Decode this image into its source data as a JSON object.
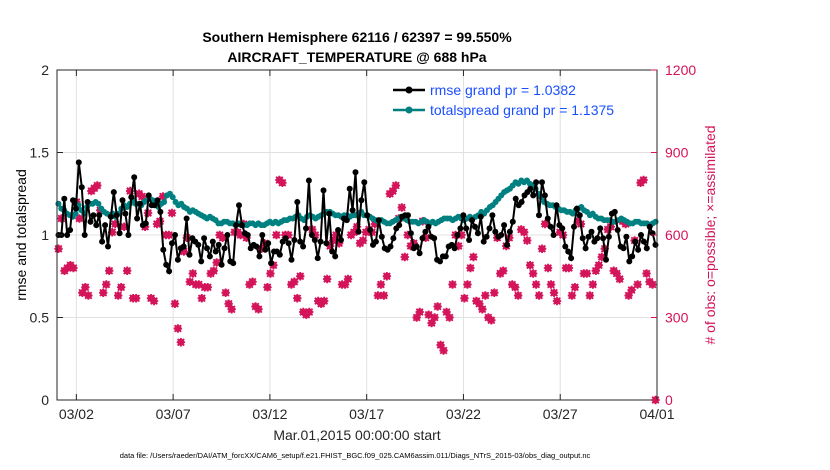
{
  "chart_data": {
    "type": "line",
    "title_line1": "Southern Hemisphere 62116 / 62397 = 99.550%",
    "title_line2": "AIRCRAFT_TEMPERATURE @ 688 hPa",
    "xlabel": "Mar.01,2015 00:00:00 start",
    "ylabel": "rmse and totalspread",
    "ylabel_right": "# of obs: o=possible; ×=assimilated",
    "footer": "data file: /Users/raeder/DAI/ATM_forcXX/CAM6_setup/f.e21.FHIST_BGC.f09_025.CAM6assim.011/Diags_NTrS_2015-03/obs_diag_output.nc",
    "xlim": [
      0,
      31
    ],
    "ylim": [
      0,
      2
    ],
    "ylim_right": [
      0,
      1200
    ],
    "xticks": [
      1,
      6,
      11,
      16,
      21,
      26,
      31
    ],
    "xtick_labels": [
      "03/02",
      "03/07",
      "03/12",
      "03/17",
      "03/22",
      "03/27",
      "04/01"
    ],
    "yticks": [
      0,
      0.5,
      1,
      1.5,
      2
    ],
    "ytick_labels": [
      "0",
      "0.5",
      "1",
      "1.5",
      "2"
    ],
    "yticks_right": [
      0,
      300,
      600,
      900,
      1200
    ],
    "ytick_labels_right": [
      "0",
      "300",
      "600",
      "900",
      "1200"
    ],
    "grid": true,
    "legend_position": "top-right",
    "colors": {
      "rmse": "#000000",
      "spread": "#008080",
      "obs": "#d4145a",
      "legend_text": "#1a4fff"
    },
    "series": [
      {
        "name": "rmse grand pr = 1.0382",
        "key": "rmse",
        "values": [
          1.0,
          1.0,
          1.22,
          1.0,
          1.03,
          1.21,
          1.16,
          1.44,
          1.29,
          1.0,
          1.2,
          1.08,
          1.12,
          1.06,
          1.12,
          0.96,
          1.06,
          0.93,
          1.11,
          1.26,
          1.12,
          1.01,
          1.21,
          1.13,
          1.0,
          1.23,
          1.35,
          1.1,
          1.19,
          1.06,
          1.07,
          1.24,
          1.18,
          1.18,
          1.21,
          1.14,
          0.91,
          0.82,
          0.78,
          0.95,
          1.0,
          0.85,
          0.92,
          0.93,
          1.1,
          0.88,
          0.98,
          0.96,
          0.94,
          0.84,
          0.98,
          0.92,
          0.87,
          0.96,
          0.9,
          0.94,
          0.82,
          0.92,
          1.0,
          0.84,
          0.83,
          1.06,
          1.18,
          1.06,
          1.01,
          1.0,
          0.92,
          0.94,
          0.93,
          0.87,
          1.0,
          0.91,
          0.95,
          0.83,
          0.9,
          0.9,
          0.88,
          0.96,
          0.98,
          0.95,
          0.85,
          0.97,
          1.2,
          0.96,
          0.93,
          1.04,
          1.33,
          1.0,
          0.97,
          0.86,
          0.96,
          1.27,
          0.95,
          1.13,
          0.9,
          0.87,
          1.03,
          0.97,
          1.1,
          1.09,
          1.28,
          1.15,
          1.38,
          1.02,
          1.21,
          1.32,
          1.12,
          1.03,
          0.94,
          0.96,
          1.09,
          0.99,
          0.92,
          0.91,
          0.93,
          0.98,
          1.04,
          1.06,
          1.11,
          1.12,
          1.12,
          1.01,
          0.92,
          0.93,
          0.89,
          0.98,
          1.02,
          1.05,
          0.99,
          0.98,
          0.85,
          0.84,
          0.87,
          0.87,
          0.93,
          0.94,
          0.92,
          1.0,
          1.04,
          1.12,
          1.04,
          0.97,
          1.09,
          1.05,
          1.01,
          1.11,
          0.96,
          0.99,
          1.04,
          1.12,
          1.02,
          0.99,
          1.0,
          1.06,
          0.94,
          1.02,
          1.08,
          1.22,
          1.18,
          1.2,
          1.24,
          1.26,
          1.28,
          1.24,
          1.32,
          1.12,
          1.32,
          1.24,
          1.1,
          1.05,
          1.0,
          1.18,
          1.06,
          1.04,
          0.93,
          0.9,
          0.86,
          1.05,
          1.16,
          1.12,
          0.98,
          0.92,
          0.99,
          1.02,
          0.96,
          0.98,
          1.04,
          0.98,
          0.85,
          0.99,
          1.13,
          1.14,
          1.03,
          0.93,
          0.92,
          0.99,
          0.84,
          0.87,
          0.96,
          0.91,
          1.0,
          0.96,
          0.92,
          1.05,
          1.01,
          0.94
        ]
      },
      {
        "name": "totalspread grand pr = 1.1375",
        "key": "spread",
        "values": [
          1.19,
          1.16,
          1.15,
          1.13,
          1.12,
          1.11,
          1.13,
          1.18,
          1.15,
          1.13,
          1.17,
          1.19,
          1.19,
          1.2,
          1.19,
          1.16,
          1.14,
          1.13,
          1.12,
          1.13,
          1.11,
          1.13,
          1.16,
          1.18,
          1.17,
          1.19,
          1.21,
          1.19,
          1.19,
          1.18,
          1.2,
          1.21,
          1.22,
          1.21,
          1.19,
          1.17,
          1.19,
          1.2,
          1.24,
          1.25,
          1.23,
          1.2,
          1.18,
          1.19,
          1.17,
          1.16,
          1.14,
          1.15,
          1.14,
          1.13,
          1.12,
          1.11,
          1.1,
          1.11,
          1.1,
          1.09,
          1.07,
          1.07,
          1.08,
          1.08,
          1.07,
          1.07,
          1.06,
          1.07,
          1.06,
          1.06,
          1.06,
          1.07,
          1.07,
          1.06,
          1.07,
          1.06,
          1.06,
          1.07,
          1.08,
          1.07,
          1.08,
          1.07,
          1.08,
          1.09,
          1.09,
          1.1,
          1.1,
          1.11,
          1.12,
          1.1,
          1.09,
          1.11,
          1.12,
          1.11,
          1.1,
          1.11,
          1.12,
          1.13,
          1.14,
          1.14,
          1.13,
          1.12,
          1.12,
          1.11,
          1.12,
          1.12,
          1.11,
          1.12,
          1.12,
          1.13,
          1.14,
          1.12,
          1.12,
          1.11,
          1.1,
          1.09,
          1.08,
          1.09,
          1.08,
          1.07,
          1.07,
          1.08,
          1.09,
          1.1,
          1.11,
          1.1,
          1.09,
          1.08,
          1.08,
          1.08,
          1.07,
          1.08,
          1.09,
          1.08,
          1.07,
          1.08,
          1.07,
          1.08,
          1.09,
          1.1,
          1.1,
          1.1,
          1.09,
          1.1,
          1.11,
          1.1,
          1.09,
          1.1,
          1.11,
          1.1,
          1.11,
          1.12,
          1.14,
          1.13,
          1.15,
          1.17,
          1.18,
          1.2,
          1.22,
          1.24,
          1.26,
          1.27,
          1.28,
          1.3,
          1.32,
          1.31,
          1.33,
          1.32,
          1.33,
          1.31,
          1.3,
          1.28,
          1.25,
          1.23,
          1.2,
          1.19,
          1.18,
          1.18,
          1.17,
          1.16,
          1.15,
          1.15,
          1.14,
          1.14,
          1.13,
          1.15,
          1.16,
          1.17,
          1.15,
          1.14,
          1.12,
          1.13,
          1.11,
          1.1,
          1.1,
          1.09,
          1.09,
          1.09,
          1.08,
          1.08,
          1.09,
          1.1,
          1.09,
          1.08,
          1.07,
          1.07,
          1.08,
          1.08,
          1.07,
          1.07,
          1.07,
          1.06,
          1.07,
          1.08
        ]
      }
    ],
    "obs_series": {
      "name": "# of obs",
      "possible": [
        550,
        660,
        470,
        480,
        490,
        480,
        720,
        660,
        390,
        410,
        380,
        760,
        770,
        780,
        690,
        390,
        420,
        470,
        610,
        640,
        380,
        410,
        630,
        470,
        760,
        370,
        370,
        750,
        740,
        630,
        680,
        370,
        360,
        640,
        650,
        740,
        600,
        600,
        680,
        350,
        260,
        210,
        540,
        590,
        430,
        460,
        420,
        420,
        370,
        410,
        410,
        460,
        470,
        500,
        600,
        590,
        390,
        350,
        330,
        610,
        610,
        600,
        640,
        590,
        420,
        430,
        340,
        330,
        550,
        570,
        410,
        460,
        490,
        600,
        800,
        790,
        600,
        600,
        420,
        430,
        370,
        450,
        320,
        310,
        320,
        620,
        600,
        360,
        350,
        360,
        440,
        560,
        580,
        600,
        570,
        420,
        420,
        440,
        600,
        610,
        630,
        570,
        580,
        610,
        620,
        610,
        640,
        380,
        420,
        380,
        450,
        750,
        760,
        780,
        660,
        700,
        520,
        600,
        560,
        570,
        300,
        320,
        650,
        590,
        310,
        280,
        300,
        340,
        200,
        180,
        320,
        300,
        420,
        600,
        560,
        600,
        370,
        420,
        480,
        520,
        360,
        350,
        330,
        380,
        300,
        290,
        390,
        590,
        460,
        470,
        560,
        590,
        420,
        410,
        380,
        620,
        610,
        580,
        490,
        460,
        420,
        380,
        550,
        640,
        480,
        420,
        390,
        360,
        610,
        600,
        480,
        480,
        380,
        410,
        650,
        640,
        460,
        460,
        380,
        420,
        470,
        490,
        520,
        550,
        620,
        630,
        470,
        460,
        440,
        650,
        640,
        380,
        400,
        580,
        420,
        790,
        800,
        460,
        430,
        420,
        0
      ],
      "assimilated": [
        550,
        660,
        470,
        480,
        490,
        480,
        720,
        660,
        390,
        410,
        380,
        760,
        770,
        780,
        690,
        390,
        420,
        470,
        610,
        640,
        380,
        410,
        630,
        470,
        760,
        370,
        370,
        750,
        740,
        630,
        680,
        370,
        360,
        640,
        650,
        740,
        600,
        600,
        680,
        350,
        260,
        210,
        540,
        590,
        430,
        460,
        420,
        420,
        370,
        410,
        410,
        460,
        470,
        500,
        600,
        590,
        390,
        350,
        330,
        610,
        610,
        600,
        640,
        590,
        420,
        430,
        340,
        330,
        550,
        570,
        410,
        460,
        490,
        600,
        800,
        790,
        600,
        600,
        420,
        430,
        370,
        450,
        320,
        310,
        320,
        620,
        600,
        360,
        350,
        360,
        440,
        560,
        580,
        600,
        570,
        420,
        420,
        440,
        600,
        610,
        630,
        570,
        580,
        610,
        620,
        610,
        640,
        380,
        420,
        380,
        450,
        750,
        760,
        780,
        660,
        700,
        520,
        600,
        560,
        570,
        300,
        320,
        650,
        590,
        310,
        280,
        300,
        340,
        200,
        180,
        320,
        300,
        420,
        600,
        560,
        600,
        370,
        420,
        480,
        520,
        360,
        350,
        330,
        380,
        300,
        290,
        390,
        590,
        460,
        470,
        560,
        590,
        420,
        410,
        380,
        620,
        610,
        580,
        490,
        460,
        420,
        380,
        550,
        640,
        480,
        420,
        390,
        360,
        610,
        600,
        480,
        480,
        380,
        410,
        650,
        640,
        460,
        460,
        380,
        420,
        470,
        490,
        520,
        550,
        620,
        630,
        470,
        460,
        440,
        650,
        640,
        380,
        400,
        580,
        420,
        790,
        800,
        460,
        430,
        420,
        0
      ]
    }
  }
}
